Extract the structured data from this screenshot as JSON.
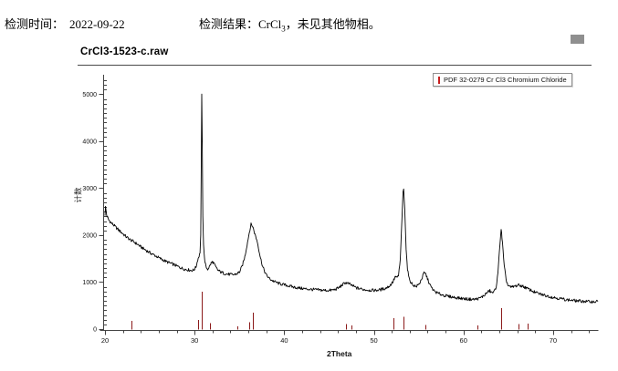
{
  "header": {
    "time_label": "检测时间：",
    "time_value": "2022-09-22",
    "result_prefix": "检测结果：CrCl",
    "result_sub": "3",
    "result_suffix": "，未见其他物相。"
  },
  "chart": {
    "title": "CrCl3-1523-c.raw",
    "legend": {
      "label": "PDF 32-0279 Cr Cl3 Chromium Chloride",
      "marker_color": "#c81e1e",
      "border_color": "#909090"
    },
    "axis_color": "#444444",
    "curve_color": "#000000"
  },
  "chart_data": {
    "type": "line",
    "title": "CrCl3-1523-c.raw",
    "xlabel": "2Theta",
    "ylabel": "计数",
    "xlim": [
      20,
      75
    ],
    "ylim": [
      0,
      5300
    ],
    "grid": false,
    "legend_position": "top-right",
    "x_major_ticks": [
      20,
      30,
      40,
      50,
      60,
      70
    ],
    "x_minor_step": 2,
    "y_major_ticks": [
      0,
      1000,
      2000,
      3000,
      4000,
      5000
    ],
    "y_minor_step": 100,
    "noise_amplitude": 32,
    "series": [
      {
        "name": "measured XRD intensity",
        "color": "#000000",
        "points": [
          [
            20.0,
            2420
          ],
          [
            20.06,
            2600
          ],
          [
            20.18,
            2430
          ],
          [
            20.4,
            2330
          ],
          [
            20.7,
            2260
          ],
          [
            21.0,
            2210
          ],
          [
            21.3,
            2150
          ],
          [
            21.7,
            2080
          ],
          [
            22.0,
            2030
          ],
          [
            22.4,
            1960
          ],
          [
            22.8,
            1905
          ],
          [
            23.2,
            1860
          ],
          [
            23.6,
            1810
          ],
          [
            24.0,
            1750
          ],
          [
            24.4,
            1700
          ],
          [
            24.8,
            1650
          ],
          [
            25.2,
            1605
          ],
          [
            25.6,
            1565
          ],
          [
            26.0,
            1520
          ],
          [
            26.4,
            1480
          ],
          [
            26.8,
            1440
          ],
          [
            27.2,
            1410
          ],
          [
            27.6,
            1380
          ],
          [
            28.0,
            1345
          ],
          [
            28.4,
            1310
          ],
          [
            28.8,
            1280
          ],
          [
            29.2,
            1265
          ],
          [
            29.6,
            1250
          ],
          [
            29.9,
            1255
          ],
          [
            30.15,
            1320
          ],
          [
            30.35,
            1480
          ],
          [
            30.5,
            1560
          ],
          [
            30.6,
            1620
          ],
          [
            30.68,
            2000
          ],
          [
            30.74,
            3300
          ],
          [
            30.8,
            5010
          ],
          [
            30.86,
            3900
          ],
          [
            30.92,
            2400
          ],
          [
            31.0,
            1800
          ],
          [
            31.1,
            1500
          ],
          [
            31.25,
            1330
          ],
          [
            31.45,
            1275
          ],
          [
            31.65,
            1330
          ],
          [
            31.85,
            1405
          ],
          [
            32.0,
            1430
          ],
          [
            32.15,
            1400
          ],
          [
            32.35,
            1320
          ],
          [
            32.6,
            1255
          ],
          [
            32.9,
            1215
          ],
          [
            33.3,
            1185
          ],
          [
            33.8,
            1165
          ],
          [
            34.3,
            1158
          ],
          [
            34.7,
            1175
          ],
          [
            35.0,
            1215
          ],
          [
            35.3,
            1335
          ],
          [
            35.6,
            1540
          ],
          [
            35.85,
            1790
          ],
          [
            36.1,
            2060
          ],
          [
            36.3,
            2230
          ],
          [
            36.5,
            2180
          ],
          [
            36.75,
            2010
          ],
          [
            37.0,
            1860
          ],
          [
            37.3,
            1560
          ],
          [
            37.6,
            1330
          ],
          [
            37.95,
            1165
          ],
          [
            38.4,
            1065
          ],
          [
            38.9,
            1010
          ],
          [
            39.5,
            965
          ],
          [
            40.2,
            935
          ],
          [
            41.0,
            895
          ],
          [
            41.8,
            870
          ],
          [
            42.6,
            850
          ],
          [
            43.4,
            840
          ],
          [
            44.2,
            828
          ],
          [
            45.0,
            822
          ],
          [
            45.6,
            838
          ],
          [
            46.1,
            880
          ],
          [
            46.5,
            945
          ],
          [
            46.85,
            990
          ],
          [
            47.2,
            965
          ],
          [
            47.6,
            925
          ],
          [
            48.1,
            875
          ],
          [
            48.7,
            848
          ],
          [
            49.4,
            830
          ],
          [
            50.1,
            824
          ],
          [
            50.7,
            838
          ],
          [
            51.3,
            868
          ],
          [
            51.8,
            925
          ],
          [
            52.15,
            1015
          ],
          [
            52.4,
            1120
          ],
          [
            52.55,
            1085
          ],
          [
            52.75,
            1140
          ],
          [
            52.95,
            1480
          ],
          [
            53.1,
            2200
          ],
          [
            53.25,
            2900
          ],
          [
            53.33,
            2985
          ],
          [
            53.45,
            2550
          ],
          [
            53.6,
            1700
          ],
          [
            53.75,
            1280
          ],
          [
            53.95,
            1060
          ],
          [
            54.3,
            950
          ],
          [
            54.7,
            905
          ],
          [
            55.05,
            955
          ],
          [
            55.35,
            1080
          ],
          [
            55.6,
            1195
          ],
          [
            55.8,
            1170
          ],
          [
            56.05,
            1040
          ],
          [
            56.35,
            905
          ],
          [
            56.7,
            815
          ],
          [
            57.1,
            765
          ],
          [
            57.6,
            730
          ],
          [
            58.2,
            700
          ],
          [
            58.9,
            678
          ],
          [
            59.7,
            655
          ],
          [
            60.5,
            638
          ],
          [
            61.2,
            632
          ],
          [
            61.8,
            655
          ],
          [
            62.3,
            715
          ],
          [
            62.7,
            790
          ],
          [
            62.95,
            815
          ],
          [
            63.15,
            775
          ],
          [
            63.4,
            788
          ],
          [
            63.65,
            905
          ],
          [
            63.85,
            1200
          ],
          [
            64.0,
            1650
          ],
          [
            64.2,
            2120
          ],
          [
            64.35,
            1850
          ],
          [
            64.55,
            1330
          ],
          [
            64.75,
            1060
          ],
          [
            64.95,
            935
          ],
          [
            65.3,
            885
          ],
          [
            65.7,
            910
          ],
          [
            66.1,
            935
          ],
          [
            66.5,
            920
          ],
          [
            66.9,
            885
          ],
          [
            67.4,
            838
          ],
          [
            67.9,
            790
          ],
          [
            68.5,
            748
          ],
          [
            69.2,
            712
          ],
          [
            69.9,
            680
          ],
          [
            70.7,
            652
          ],
          [
            71.5,
            625
          ],
          [
            72.3,
            608
          ],
          [
            73.1,
            595
          ],
          [
            73.9,
            585
          ],
          [
            74.5,
            582
          ],
          [
            75.0,
            588
          ]
        ]
      }
    ],
    "reference_pattern": {
      "name": "PDF 32-0279 Cr Cl3 Chromium Chloride",
      "color": "#8b1a1a",
      "peaks": [
        [
          23.0,
          170
        ],
        [
          30.4,
          190
        ],
        [
          30.8,
          800
        ],
        [
          31.7,
          130
        ],
        [
          34.8,
          60
        ],
        [
          36.1,
          150
        ],
        [
          36.5,
          350
        ],
        [
          46.85,
          110
        ],
        [
          47.5,
          80
        ],
        [
          52.2,
          230
        ],
        [
          53.35,
          260
        ],
        [
          55.7,
          90
        ],
        [
          61.55,
          80
        ],
        [
          64.2,
          450
        ],
        [
          66.1,
          110
        ],
        [
          67.15,
          120
        ]
      ]
    }
  }
}
